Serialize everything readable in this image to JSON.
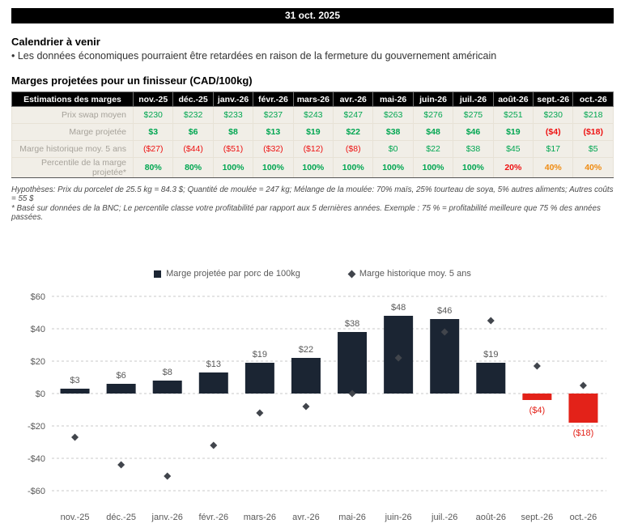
{
  "banner": {
    "date": "31 oct. 2025"
  },
  "calendar": {
    "title": "Calendrier à venir",
    "bullet": "• Les données économiques pourraient être retardées en raison de la fermeture du gouvernement américain"
  },
  "table": {
    "title": "Marges projetées pour un finisseur (CAD/100kg)",
    "header_label": "Estimations des marges",
    "months": [
      "nov.-25",
      "déc.-25",
      "janv.-26",
      "févr.-26",
      "mars-26",
      "avr.-26",
      "mai-26",
      "juin-26",
      "juil.-26",
      "août-26",
      "sept.-26",
      "oct.-26"
    ],
    "rows": [
      {
        "label": "Prix swap moyen",
        "bold": false,
        "values": [
          "$230",
          "$232",
          "$233",
          "$237",
          "$243",
          "$247",
          "$263",
          "$276",
          "$275",
          "$251",
          "$230",
          "$218"
        ],
        "styles": [
          "g",
          "g",
          "g",
          "g",
          "g",
          "g",
          "g",
          "g",
          "g",
          "g",
          "g",
          "g"
        ]
      },
      {
        "label": "Marge projetée",
        "bold": true,
        "values": [
          "$3",
          "$6",
          "$8",
          "$13",
          "$19",
          "$22",
          "$38",
          "$48",
          "$46",
          "$19",
          "($4)",
          "($18)"
        ],
        "styles": [
          "g",
          "g",
          "g",
          "g",
          "g",
          "g",
          "g",
          "g",
          "g",
          "g",
          "r",
          "r"
        ]
      },
      {
        "label": "Marge historique moy. 5 ans",
        "bold": false,
        "values": [
          "($27)",
          "($44)",
          "($51)",
          "($32)",
          "($12)",
          "($8)",
          "$0",
          "$22",
          "$38",
          "$45",
          "$17",
          "$5"
        ],
        "styles": [
          "r",
          "r",
          "r",
          "r",
          "r",
          "r",
          "g",
          "g",
          "g",
          "g",
          "g",
          "g"
        ]
      },
      {
        "label": "Percentile de la marge projetée*",
        "bold": true,
        "values": [
          "80%",
          "80%",
          "100%",
          "100%",
          "100%",
          "100%",
          "100%",
          "100%",
          "100%",
          "20%",
          "40%",
          "40%"
        ],
        "styles": [
          "g",
          "g",
          "g",
          "g",
          "g",
          "g",
          "g",
          "g",
          "g",
          "r",
          "o",
          "o"
        ]
      }
    ]
  },
  "footnotes": {
    "assumptions": "Hypothèses: Prix du porcelet de 25.5 kg = 84.3 $; Quantité de moulée = 247 kg; Mélange de la moulée: 70% maïs, 25% tourteau de soya, 5% autres aliments; Autres coûts = 55 $",
    "percentile": "* Basé sur données de la BNC; Le percentile classe votre profitabilité par rapport aux 5 dernières années. Exemple : 75 % = profitabilité meilleure que 75 % des années passées."
  },
  "palette": {
    "positive_green": "#00a651",
    "negative_red": "#ee1111",
    "warning_orange": "#ef8b11"
  },
  "chart_data": {
    "type": "bar",
    "categories": [
      "nov.-25",
      "déc.-25",
      "janv.-26",
      "févr.-26",
      "mars-26",
      "avr.-26",
      "mai-26",
      "juin-26",
      "juil.-26",
      "août-26",
      "sept.-26",
      "oct.-26"
    ],
    "series": [
      {
        "name": "Marge projetée par porc de 100kg",
        "values": [
          3,
          6,
          8,
          13,
          19,
          22,
          38,
          48,
          46,
          19,
          -4,
          -18
        ]
      },
      {
        "name": "Marge historique moy. 5 ans",
        "values": [
          -27,
          -44,
          -51,
          -32,
          -12,
          -8,
          0,
          22,
          38,
          45,
          17,
          5
        ]
      }
    ],
    "bar_labels": [
      "$3",
      "$6",
      "$8",
      "$13",
      "$19",
      "$22",
      "$38",
      "$48",
      "$46",
      "$19",
      "($4)",
      "($18)"
    ],
    "ylim": [
      -60,
      60
    ],
    "yticks": [
      60,
      40,
      20,
      0,
      -20,
      -40,
      -60
    ],
    "ytick_labels": [
      "$60",
      "$40",
      "$20",
      "$0",
      "-$20",
      "-$40",
      "-$60"
    ],
    "grid": "dashed",
    "legend_position": "top-center",
    "bar_color": "#1b2533",
    "negative_bar_color": "#e32219",
    "marker_color": "#41454c",
    "title": "",
    "xlabel": "",
    "ylabel": ""
  }
}
